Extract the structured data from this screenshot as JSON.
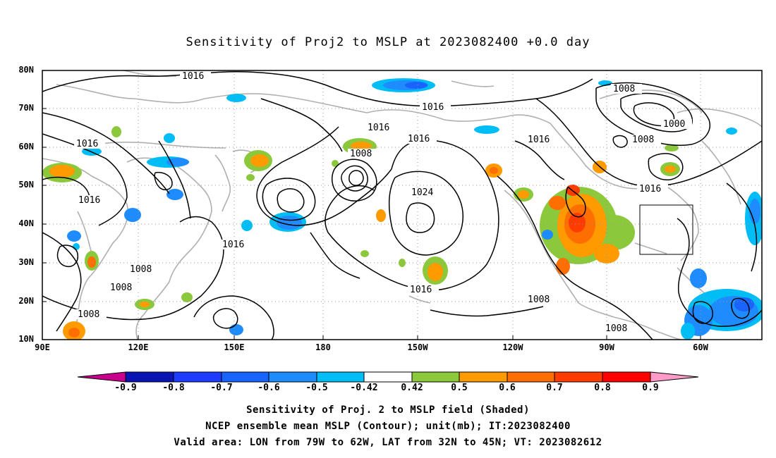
{
  "title": "Sensitivity of Proj2 to MSLP at 2023082400 +0.0 day",
  "lat_labels": [
    "80N",
    "70N",
    "60N",
    "50N",
    "40N",
    "30N",
    "20N",
    "10N"
  ],
  "lon_labels": [
    "90E",
    "120E",
    "150E",
    "180",
    "150W",
    "120W",
    "90W",
    "60W"
  ],
  "contour_labels": [
    "1016",
    "1016",
    "1016",
    "1016",
    "1016",
    "1008",
    "1016",
    "1024",
    "1016",
    "1008",
    "1000",
    "1008",
    "1016",
    "1016",
    "1016",
    "1008",
    "1008",
    "1008",
    "1008",
    "1016",
    "1008"
  ],
  "colorbar": {
    "labels": [
      "-0.9",
      "-0.8",
      "-0.7",
      "-0.6",
      "-0.5",
      "-0.42",
      "0.42",
      "0.5",
      "0.6",
      "0.7",
      "0.8",
      "0.9"
    ],
    "colors": [
      "#c8008c",
      "#0a14b4",
      "#1e3cff",
      "#1964ff",
      "#1e8cff",
      "#00bef5",
      "#ffffff",
      "#8cc83c",
      "#ff9b00",
      "#ff6e00",
      "#ff3c00",
      "#ff0000",
      "#ff9bc8"
    ]
  },
  "captions": [
    "Sensitivity of Proj. 2 to MSLP field (Shaded)",
    "NCEP ensemble mean MSLP (Contour); unit(mb); IT:2023082400",
    "Valid area: LON from 79W to 62W, LAT from 32N to 45N; VT: 2023082612"
  ],
  "map_extent": {
    "lon_min_label": "90E",
    "lon_max_label": "60W",
    "lat_min_label": "10N",
    "lat_max_label": "80N"
  }
}
